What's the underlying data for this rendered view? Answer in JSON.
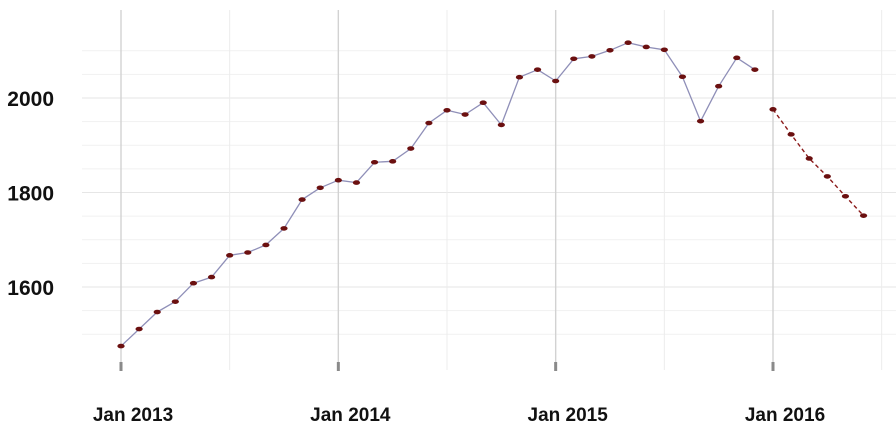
{
  "chart_data": {
    "type": "line",
    "title": "",
    "xlabel": "",
    "ylabel": "",
    "x_ticks": [
      "Jan 2013",
      "Jan 2014",
      "Jan 2015",
      "Jan 2016"
    ],
    "y_ticks": [
      1600,
      1800,
      2000
    ],
    "ylim": [
      1500,
      2150
    ],
    "grid": true,
    "series": [
      {
        "style": "solid",
        "color": "#8f8fb8",
        "marker_color": "#6b1010",
        "points": [
          {
            "x": "2013-01",
            "y": 1475
          },
          {
            "x": "2013-02",
            "y": 1511
          },
          {
            "x": "2013-03",
            "y": 1547
          },
          {
            "x": "2013-04",
            "y": 1569
          },
          {
            "x": "2013-05",
            "y": 1608
          },
          {
            "x": "2013-06",
            "y": 1621
          },
          {
            "x": "2013-07",
            "y": 1667
          },
          {
            "x": "2013-08",
            "y": 1673
          },
          {
            "x": "2013-09",
            "y": 1689
          },
          {
            "x": "2013-10",
            "y": 1724
          },
          {
            "x": "2013-11",
            "y": 1785
          },
          {
            "x": "2013-12",
            "y": 1810
          },
          {
            "x": "2014-01",
            "y": 1826
          },
          {
            "x": "2014-02",
            "y": 1821
          },
          {
            "x": "2014-03",
            "y": 1864
          },
          {
            "x": "2014-04",
            "y": 1866
          },
          {
            "x": "2014-05",
            "y": 1893
          },
          {
            "x": "2014-06",
            "y": 1947
          },
          {
            "x": "2014-07",
            "y": 1974
          },
          {
            "x": "2014-08",
            "y": 1965
          },
          {
            "x": "2014-09",
            "y": 1990
          },
          {
            "x": "2014-10",
            "y": 1943
          },
          {
            "x": "2014-11",
            "y": 2044
          },
          {
            "x": "2014-12",
            "y": 2060
          },
          {
            "x": "2015-01",
            "y": 2036
          },
          {
            "x": "2015-02",
            "y": 2083
          },
          {
            "x": "2015-03",
            "y": 2088
          },
          {
            "x": "2015-04",
            "y": 2101
          },
          {
            "x": "2015-05",
            "y": 2117
          },
          {
            "x": "2015-06",
            "y": 2108
          },
          {
            "x": "2015-07",
            "y": 2102
          },
          {
            "x": "2015-08",
            "y": 2045
          },
          {
            "x": "2015-09",
            "y": 1951
          },
          {
            "x": "2015-10",
            "y": 2025
          },
          {
            "x": "2015-11",
            "y": 2085
          },
          {
            "x": "2015-12",
            "y": 2060
          }
        ]
      },
      {
        "style": "dashed",
        "color": "#8b1a1a",
        "marker_color": "#6b1010",
        "points": [
          {
            "x": "2016-01",
            "y": 1976
          },
          {
            "x": "2016-02",
            "y": 1923
          },
          {
            "x": "2016-03",
            "y": 1872
          },
          {
            "x": "2016-04",
            "y": 1834
          },
          {
            "x": "2016-05",
            "y": 1792
          },
          {
            "x": "2016-06",
            "y": 1751
          }
        ]
      }
    ]
  }
}
